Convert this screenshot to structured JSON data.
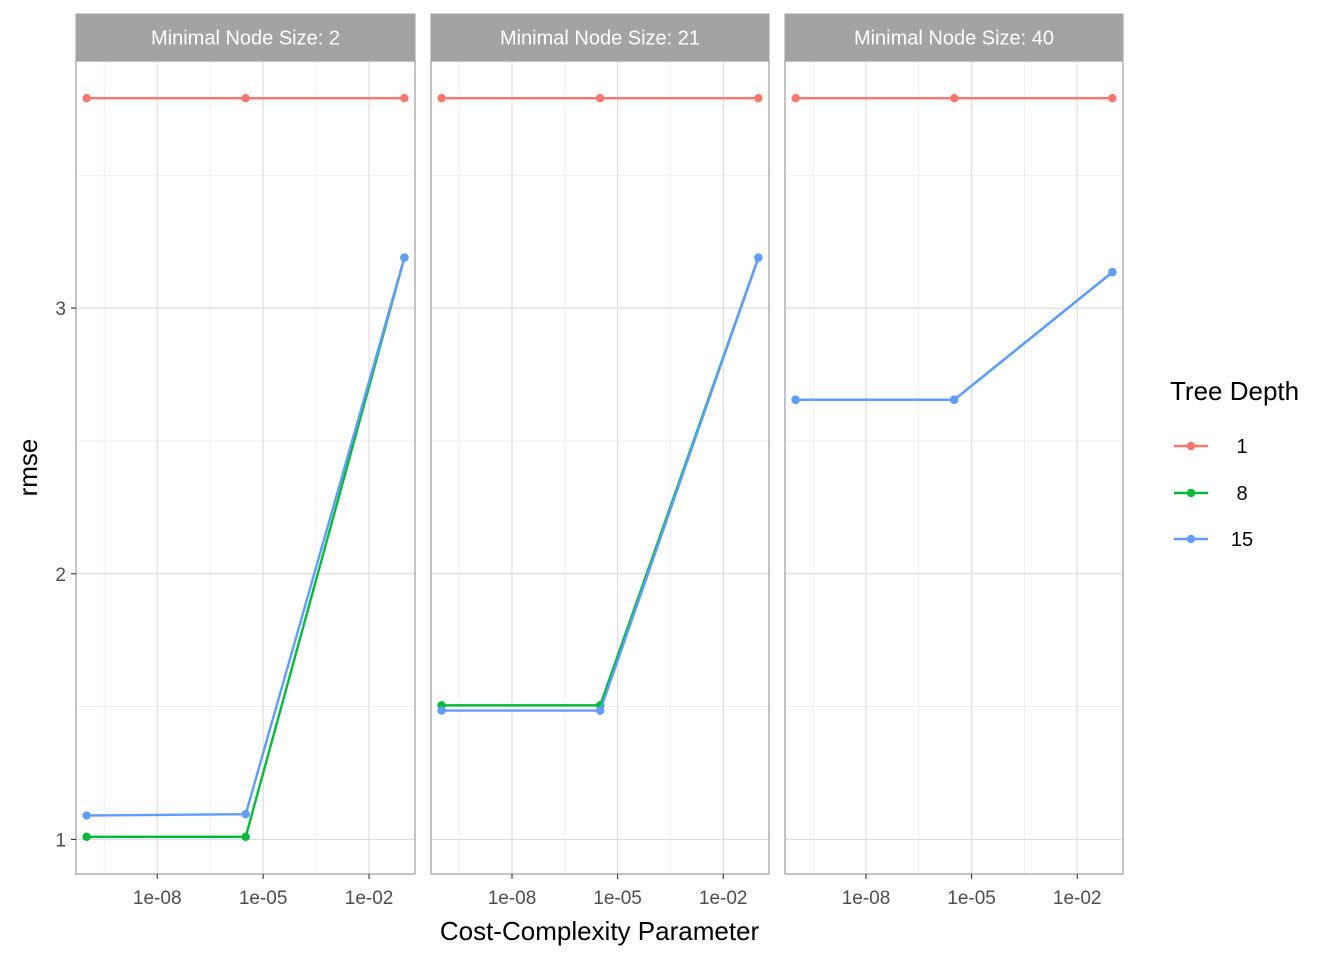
{
  "chart_data": {
    "type": "line",
    "x_scale": "log10",
    "xlabel": "Cost-Complexity Parameter",
    "ylabel": "rmse",
    "x": [
      1e-10,
      3.2e-06,
      0.1
    ],
    "xlim": [
      5e-11,
      0.2
    ],
    "ylim": [
      0.87,
      3.93
    ],
    "x_ticks": [
      {
        "value": 1e-08,
        "label": "1e-08"
      },
      {
        "value": 1e-05,
        "label": "1e-05"
      },
      {
        "value": 0.01,
        "label": "1e-02"
      }
    ],
    "y_ticks": [
      {
        "value": 1,
        "label": "1"
      },
      {
        "value": 2,
        "label": "2"
      },
      {
        "value": 3,
        "label": "3"
      }
    ],
    "legend": {
      "title": "Tree Depth",
      "position": "right"
    },
    "grid": true,
    "facets": [
      {
        "strip": "Minimal Node Size: 2",
        "series": [
          {
            "name": "1",
            "color": "#F8766D",
            "values": [
              3.79,
              3.79,
              3.79
            ]
          },
          {
            "name": "8",
            "color": "#00BA38",
            "values": [
              1.01,
              1.01,
              3.19
            ]
          },
          {
            "name": "15",
            "color": "#619CFF",
            "values": [
              1.09,
              1.095,
              3.19
            ]
          }
        ]
      },
      {
        "strip": "Minimal Node Size: 21",
        "series": [
          {
            "name": "1",
            "color": "#F8766D",
            "values": [
              3.79,
              3.79,
              3.79
            ]
          },
          {
            "name": "8",
            "color": "#00BA38",
            "values": [
              1.505,
              1.505,
              3.19
            ]
          },
          {
            "name": "15",
            "color": "#619CFF",
            "values": [
              1.485,
              1.485,
              3.19
            ]
          }
        ]
      },
      {
        "strip": "Minimal Node Size: 40",
        "series": [
          {
            "name": "1",
            "color": "#F8766D",
            "values": [
              3.79,
              3.79,
              3.79
            ]
          },
          {
            "name": "8",
            "color": "#00BA38",
            "values": [
              2.655,
              2.655,
              3.135
            ]
          },
          {
            "name": "15",
            "color": "#619CFF",
            "values": [
              2.655,
              2.655,
              3.135
            ]
          }
        ]
      }
    ]
  }
}
